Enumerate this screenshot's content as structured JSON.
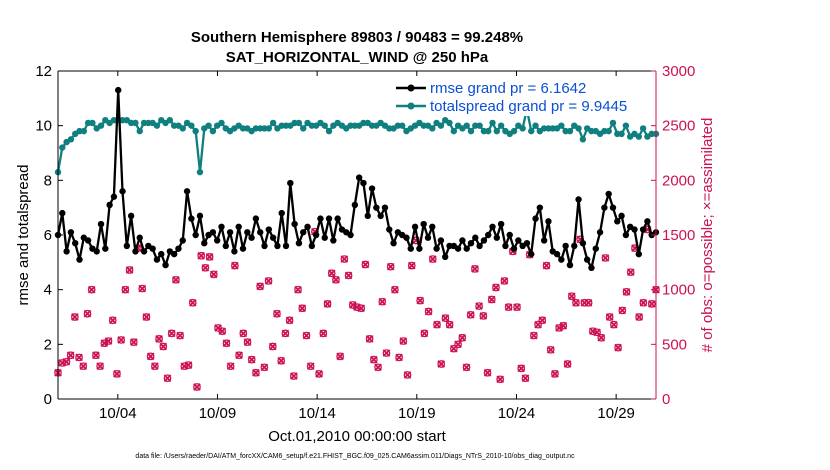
{
  "chart_data": {
    "type": "line",
    "title_line1": "Southern Hemisphere 89803 / 90483 = 99.248%",
    "title_line2": "SAT_HORIZONTAL_WIND @ 250 hPa",
    "ylabel_left": "rmse and totalspread",
    "ylabel_right": "# of obs: o=possible; ×=assimilated",
    "xlabel": "Oct.01,2010 00:00:00 start",
    "footer": "data file: /Users/raeder/DAI/ATM_forcXX/CAM6_setup/f.e21.FHIST_BGC.f09_025.CAM6assim.011/Diags_NTrS_2010-10/obs_diag_output.nc",
    "xlim": [
      1.0,
      31.0
    ],
    "xticks": [
      {
        "x": 4,
        "label": "10/04"
      },
      {
        "x": 9,
        "label": "10/09"
      },
      {
        "x": 14,
        "label": "10/14"
      },
      {
        "x": 19,
        "label": "10/19"
      },
      {
        "x": 24,
        "label": "10/24"
      },
      {
        "x": 29,
        "label": "10/29"
      }
    ],
    "ylim_left": [
      0,
      12
    ],
    "yticks_left": [
      "0",
      "2",
      "4",
      "6",
      "8",
      "10",
      "12"
    ],
    "ylim_right": [
      0,
      3000
    ],
    "yticks_right": [
      "0",
      "500",
      "1000",
      "1500",
      "2000",
      "2500",
      "3000"
    ],
    "legend": {
      "placement": "top-right",
      "entries": [
        "rmse grand pr = 6.1642",
        "totalspread grand pr = 9.9445"
      ]
    },
    "colors": {
      "rmse": "#000000",
      "spread": "#0f7f7f",
      "obs": "#cc1155",
      "right_axis": "#cc1155"
    },
    "series": [
      {
        "name": "rmse grand pr = 6.1642",
        "values": [
          6.0,
          6.8,
          5.4,
          6.1,
          5.7,
          5.1,
          5.9,
          5.8,
          5.5,
          5.4,
          6.4,
          5.5,
          7.1,
          7.4,
          11.3,
          7.6,
          5.6,
          6.7,
          5.4,
          5.9,
          5.4,
          5.6,
          5.5,
          5.1,
          5.3,
          4.9,
          5.4,
          5.3,
          5.5,
          5.8,
          7.6,
          6.6,
          6.0,
          6.7,
          5.7,
          6.0,
          6.1,
          5.8,
          6.3,
          5.6,
          6.1,
          5.4,
          6.3,
          5.5,
          6.1,
          5.9,
          6.6,
          6.1,
          5.6,
          6.2,
          5.9,
          5.6,
          6.8,
          5.6,
          7.9,
          6.4,
          5.7,
          6.1,
          6.3,
          5.6,
          6.0,
          6.6,
          5.9,
          6.6,
          5.8,
          6.6,
          6.2,
          6.1,
          6.0,
          7.1,
          8.1,
          7.9,
          6.7,
          7.7,
          7.0,
          6.7,
          7.0,
          6.2,
          5.7,
          6.1,
          6.0,
          5.9,
          5.5,
          6.3,
          5.5,
          6.4,
          5.9,
          6.3,
          5.5,
          5.8,
          5.2,
          5.6,
          5.6,
          5.5,
          5.8,
          5.5,
          5.7,
          5.9,
          5.6,
          5.8,
          6.0,
          6.3,
          5.9,
          6.4,
          5.6,
          6.0,
          5.5,
          5.8,
          5.6,
          5.7,
          5.3,
          6.6,
          7.0,
          5.8,
          6.5,
          5.4,
          5.3,
          5.1,
          5.6,
          4.9,
          5.6,
          7.3,
          5.7,
          5.1,
          4.8,
          5.5,
          6.1,
          7.0,
          7.5,
          7.0,
          6.5,
          6.7,
          6.0,
          6.3,
          6.2,
          5.3,
          6.2,
          6.5,
          6.0,
          6.1
        ]
      },
      {
        "name": "totalspread grand pr = 9.9445",
        "values": [
          8.3,
          9.2,
          9.4,
          9.5,
          9.7,
          9.8,
          9.8,
          10.1,
          10.1,
          9.9,
          10.0,
          10.2,
          10.1,
          10.2,
          10.2,
          10.2,
          10.2,
          10.1,
          10.1,
          9.8,
          10.1,
          10.1,
          10.1,
          10.0,
          10.2,
          10.1,
          10.2,
          10.0,
          10.0,
          9.9,
          10.1,
          10.0,
          9.8,
          8.3,
          9.9,
          10.0,
          9.8,
          10.0,
          10.1,
          9.9,
          9.8,
          9.9,
          10.0,
          9.9,
          9.9,
          9.8,
          9.9,
          9.9,
          9.9,
          9.9,
          10.1,
          9.9,
          10.0,
          10.0,
          10.0,
          10.1,
          10.1,
          9.9,
          10.1,
          10.0,
          10.0,
          10.1,
          10.0,
          9.8,
          10.0,
          10.1,
          10.0,
          9.9,
          10.0,
          10.0,
          10.0,
          10.1,
          10.1,
          10.0,
          10.0,
          10.1,
          10.0,
          9.9,
          9.9,
          10.0,
          10.0,
          9.8,
          9.9,
          10.0,
          10.1,
          10.0,
          10.0,
          9.9,
          10.1,
          10.0,
          10.2,
          10.1,
          9.8,
          10.0,
          9.9,
          10.0,
          9.8,
          10.0,
          10.0,
          9.8,
          9.8,
          10.1,
          9.8,
          10.0,
          9.8,
          9.7,
          9.8,
          10.0,
          9.9,
          10.6,
          9.8,
          10.0,
          9.8,
          9.9,
          9.9,
          9.9,
          9.9,
          10.0,
          9.8,
          9.8,
          10.0,
          9.9,
          9.5,
          9.9,
          9.8,
          9.8,
          9.7,
          9.8,
          9.8,
          10.1,
          9.7,
          9.7,
          10.0,
          9.6,
          9.7,
          9.6,
          9.9,
          9.6,
          9.7,
          9.7
        ]
      },
      {
        "name": "# of obs assimilated",
        "axis": "right",
        "values": [
          240,
          330,
          340,
          400,
          750,
          380,
          300,
          780,
          1000,
          400,
          300,
          510,
          530,
          720,
          230,
          540,
          1000,
          1180,
          520,
          1380,
          1010,
          750,
          390,
          300,
          550,
          480,
          190,
          600,
          1090,
          580,
          300,
          310,
          880,
          110,
          1310,
          1200,
          1300,
          1140,
          650,
          620,
          510,
          300,
          1220,
          400,
          600,
          520,
          360,
          240,
          1030,
          290,
          1080,
          480,
          780,
          350,
          600,
          720,
          210,
          1000,
          830,
          580,
          300,
          1530,
          230,
          600,
          870,
          1150,
          1090,
          390,
          1280,
          1130,
          860,
          840,
          830,
          1230,
          550,
          360,
          290,
          890,
          420,
          1210,
          1000,
          380,
          530,
          220,
          1220,
          1450,
          900,
          600,
          800,
          1280,
          680,
          320,
          740,
          680,
          460,
          500,
          560,
          290,
          770,
          1190,
          850,
          760,
          240,
          910,
          1020,
          180,
          1080,
          840,
          1350,
          840,
          280,
          190,
          1320,
          580,
          680,
          720,
          1220,
          450,
          230,
          650,
          670,
          320,
          940,
          880,
          1460,
          880,
          880,
          620,
          610,
          560,
          1290,
          750,
          680,
          470,
          810,
          980,
          1160,
          1380,
          750,
          880,
          1550,
          870,
          1000
        ]
      },
      {
        "name": "# of obs possible",
        "axis": "right",
        "values": [
          240,
          330,
          340,
          400,
          750,
          380,
          300,
          780,
          1000,
          400,
          300,
          510,
          530,
          720,
          230,
          540,
          1000,
          1180,
          520,
          1380,
          1010,
          750,
          390,
          300,
          550,
          480,
          190,
          600,
          1090,
          580,
          300,
          310,
          880,
          110,
          1310,
          1200,
          1300,
          1140,
          650,
          620,
          510,
          300,
          1220,
          400,
          600,
          520,
          360,
          240,
          1030,
          290,
          1080,
          480,
          780,
          350,
          600,
          720,
          210,
          1000,
          830,
          580,
          300,
          1530,
          230,
          600,
          870,
          1150,
          1090,
          390,
          1280,
          1130,
          860,
          840,
          830,
          1230,
          550,
          360,
          290,
          890,
          420,
          1210,
          1000,
          380,
          530,
          220,
          1220,
          1450,
          900,
          600,
          800,
          1280,
          680,
          320,
          740,
          680,
          460,
          500,
          560,
          290,
          770,
          1190,
          850,
          760,
          240,
          910,
          1020,
          180,
          1080,
          840,
          1350,
          840,
          280,
          190,
          1320,
          580,
          680,
          720,
          1220,
          450,
          230,
          650,
          670,
          320,
          940,
          880,
          1460,
          880,
          880,
          620,
          610,
          560,
          1290,
          750,
          680,
          470,
          810,
          980,
          1160,
          1380,
          750,
          880,
          1550,
          870,
          1000
        ]
      }
    ]
  }
}
